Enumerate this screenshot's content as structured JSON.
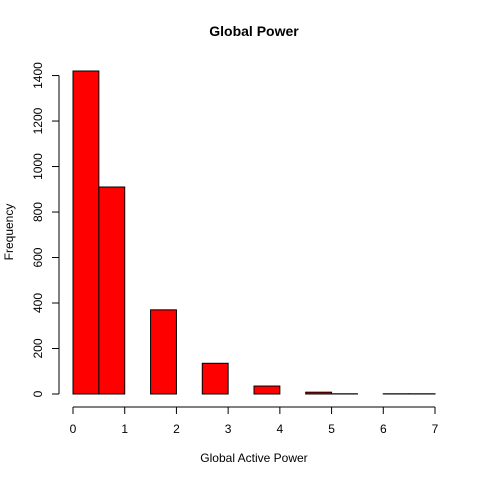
{
  "chart_data": {
    "type": "bar",
    "title": "Global Power",
    "xlabel": "Global Active Power",
    "ylabel": "Frequency",
    "bins": [
      {
        "start": 0.0,
        "end": 0.5,
        "value": 1420
      },
      {
        "start": 0.5,
        "end": 1.0,
        "value": 910
      },
      {
        "start": 1.0,
        "end": 1.5,
        "value": 0
      },
      {
        "start": 1.5,
        "end": 2.0,
        "value": 370
      },
      {
        "start": 2.0,
        "end": 2.5,
        "value": 0
      },
      {
        "start": 2.5,
        "end": 3.0,
        "value": 135
      },
      {
        "start": 3.0,
        "end": 3.5,
        "value": 0
      },
      {
        "start": 3.5,
        "end": 4.0,
        "value": 35
      },
      {
        "start": 4.0,
        "end": 4.5,
        "value": 0
      },
      {
        "start": 4.5,
        "end": 5.0,
        "value": 8
      },
      {
        "start": 5.0,
        "end": 5.5,
        "value": 1
      },
      {
        "start": 5.5,
        "end": 6.0,
        "value": 0
      },
      {
        "start": 6.0,
        "end": 6.5,
        "value": 1
      },
      {
        "start": 6.5,
        "end": 7.0,
        "value": 1
      }
    ],
    "xlim": [
      0,
      7
    ],
    "ylim": [
      0,
      1420
    ],
    "xticks": [
      "0",
      "1",
      "2",
      "3",
      "4",
      "5",
      "6",
      "7"
    ],
    "yticks": [
      "0",
      "200",
      "400",
      "600",
      "800",
      "1000",
      "1200",
      "1400"
    ],
    "bar_color": "#ff0000",
    "bar_border_color": "#000000",
    "grid": false
  }
}
